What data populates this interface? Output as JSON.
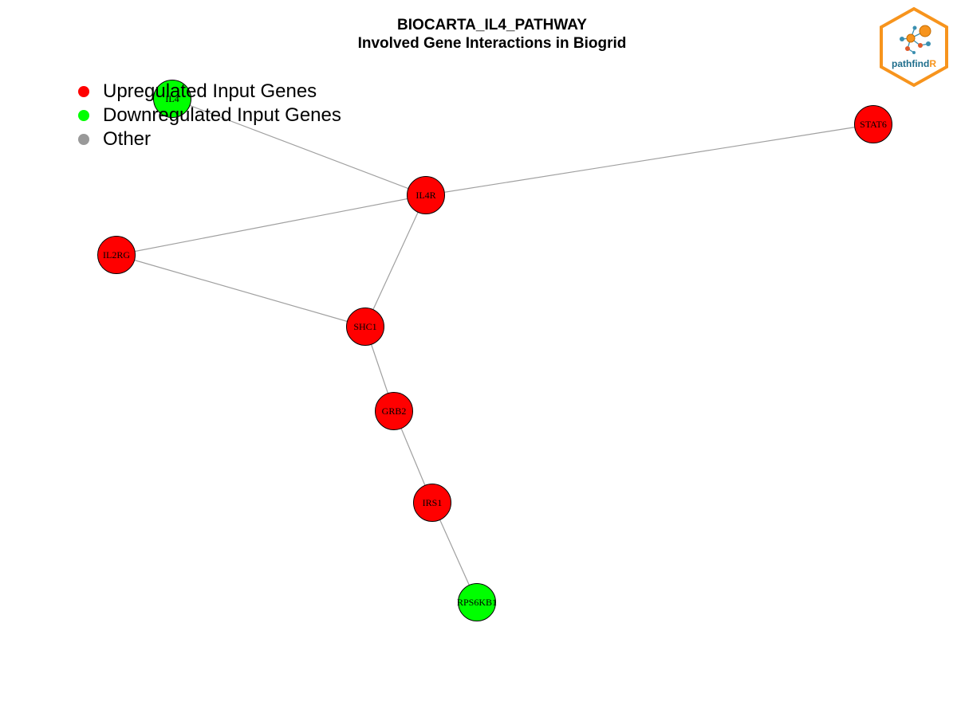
{
  "title": {
    "line1": "BIOCARTA_IL4_PATHWAY",
    "line2": "Involved Gene Interactions in Biogrid"
  },
  "legend": [
    {
      "label": "Upregulated Input Genes",
      "color": "#ff0000"
    },
    {
      "label": "Downregulated Input Genes",
      "color": "#00ff00"
    },
    {
      "label": "Other",
      "color": "#999999"
    }
  ],
  "logo": {
    "text_main": "pathfind",
    "text_accent": "R",
    "border_color": "#f7941d",
    "text_color": "#1f6e8c"
  },
  "colors": {
    "up": "#ff0000",
    "down": "#00ff00",
    "edge": "#a0a0a0",
    "node_border": "#000000"
  },
  "network": {
    "nodes": [
      {
        "id": "IL4",
        "status": "down"
      },
      {
        "id": "STAT6",
        "status": "up"
      },
      {
        "id": "IL4R",
        "status": "up"
      },
      {
        "id": "IL2RG",
        "status": "up"
      },
      {
        "id": "SHC1",
        "status": "up"
      },
      {
        "id": "GRB2",
        "status": "up"
      },
      {
        "id": "IRS1",
        "status": "up"
      },
      {
        "id": "RPS6KB1",
        "status": "down"
      }
    ],
    "edges": [
      [
        "IL4",
        "IL4R"
      ],
      [
        "IL4R",
        "STAT6"
      ],
      [
        "IL4R",
        "IL2RG"
      ],
      [
        "IL4R",
        "SHC1"
      ],
      [
        "IL2RG",
        "SHC1"
      ],
      [
        "SHC1",
        "GRB2"
      ],
      [
        "GRB2",
        "IRS1"
      ],
      [
        "IRS1",
        "RPS6KB1"
      ]
    ]
  }
}
